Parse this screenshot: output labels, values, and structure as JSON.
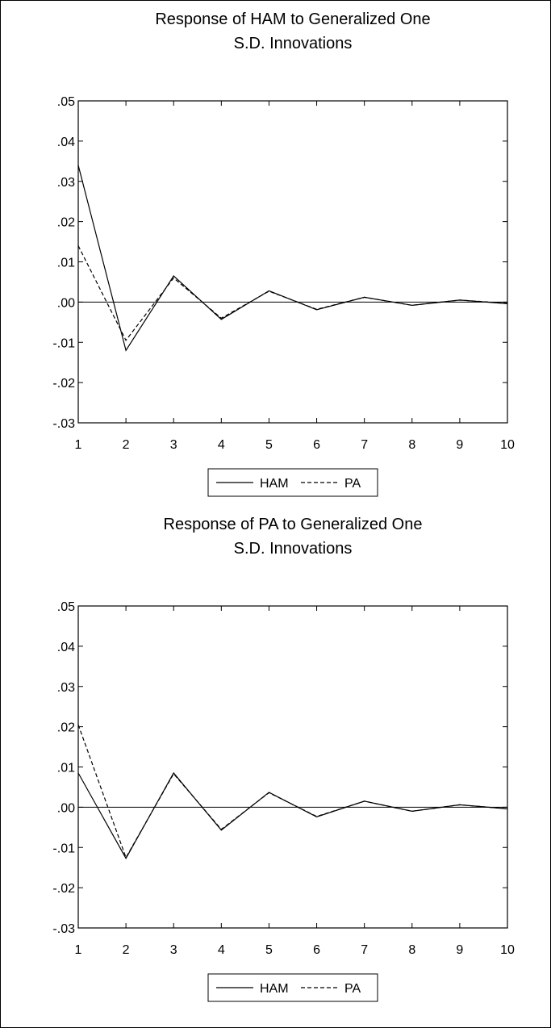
{
  "chart_data": [
    {
      "type": "line",
      "title": "Response of HAM to Generalized One",
      "subtitle": "S.D. Innovations",
      "xlabel": "",
      "ylabel": "",
      "x": [
        1,
        2,
        3,
        4,
        5,
        6,
        7,
        8,
        9,
        10
      ],
      "ylim": [
        -0.03,
        0.05
      ],
      "y_tick_labels": [
        ".05",
        ".04",
        ".03",
        ".02",
        ".01",
        ".00",
        "-.01",
        "-.02",
        "-.03"
      ],
      "x_tick_labels": [
        "1",
        "2",
        "3",
        "4",
        "5",
        "6",
        "7",
        "8",
        "9",
        "10"
      ],
      "grid": false,
      "zero_line": true,
      "legend_position": "bottom-center",
      "series": [
        {
          "name": "HAM",
          "style": "solid",
          "values": [
            0.034,
            -0.012,
            0.0065,
            -0.0043,
            0.0028,
            -0.0019,
            0.0012,
            -0.0008,
            0.0005,
            -0.0004
          ]
        },
        {
          "name": "PA",
          "style": "dashed",
          "values": [
            0.014,
            -0.0095,
            0.006,
            -0.004,
            0.0027,
            -0.0018,
            0.0012,
            -0.0008,
            0.0005,
            -0.0003
          ]
        }
      ]
    },
    {
      "type": "line",
      "title": "Response of PA to Generalized One",
      "subtitle": "S.D. Innovations",
      "xlabel": "",
      "ylabel": "",
      "x": [
        1,
        2,
        3,
        4,
        5,
        6,
        7,
        8,
        9,
        10
      ],
      "ylim": [
        -0.03,
        0.05
      ],
      "y_tick_labels": [
        ".05",
        ".04",
        ".03",
        ".02",
        ".01",
        ".00",
        "-.01",
        "-.02",
        "-.03"
      ],
      "x_tick_labels": [
        "1",
        "2",
        "3",
        "4",
        "5",
        "6",
        "7",
        "8",
        "9",
        "10"
      ],
      "grid": false,
      "zero_line": true,
      "legend_position": "bottom-center",
      "series": [
        {
          "name": "HAM",
          "style": "solid",
          "values": [
            0.0085,
            -0.0127,
            0.0085,
            -0.0057,
            0.0037,
            -0.0024,
            0.0015,
            -0.001,
            0.0006,
            -0.0004
          ]
        },
        {
          "name": "PA",
          "style": "dashed",
          "values": [
            0.0205,
            -0.0125,
            0.0083,
            -0.0055,
            0.0036,
            -0.0023,
            0.0015,
            -0.001,
            0.0006,
            -0.0004
          ]
        }
      ]
    }
  ],
  "colors": {
    "line": "#000000",
    "background": "#ffffff"
  }
}
